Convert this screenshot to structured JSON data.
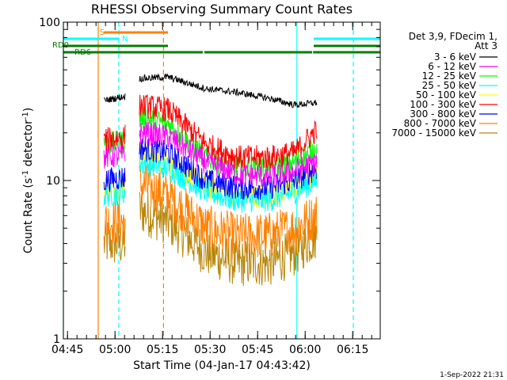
{
  "chart_data": {
    "type": "line",
    "title": "RHESSI Observing Summary Count Rates",
    "xlabel": "Start Time (04-Jan-17 04:43:42)",
    "ylabel_main": "Count Rate (s",
    "ylabel_sup": "-1",
    "ylabel_tail": " detector",
    "ylabel_end": ")",
    "yscale": "log",
    "ylim": [
      1,
      100
    ],
    "y_ticks": [
      {
        "value": 1,
        "label": "1"
      },
      {
        "value": 10,
        "label": "10"
      },
      {
        "value": 100,
        "label": "100"
      }
    ],
    "x_unit": "minutes after 04:43:42",
    "xlim": [
      0,
      100
    ],
    "x_ticks": [
      {
        "value": 1.3,
        "label": "04:45"
      },
      {
        "value": 16.3,
        "label": "05:00"
      },
      {
        "value": 31.3,
        "label": "05:15"
      },
      {
        "value": 46.3,
        "label": "05:30"
      },
      {
        "value": 61.3,
        "label": "05:45"
      },
      {
        "value": 76.3,
        "label": "06:00"
      },
      {
        "value": 91.3,
        "label": "06:15"
      }
    ],
    "legend_header": [
      "Det 3,9, FDecim 1,",
      "Att 3"
    ],
    "legend_position": "right",
    "series": [
      {
        "name": "3 - 6 keV",
        "color": "#000000",
        "levels": [
          32,
          34,
          44,
          45,
          38,
          36,
          33,
          30,
          31
        ]
      },
      {
        "name": "6 - 12 keV",
        "color": "#ff00ff",
        "levels": [
          14,
          14.5,
          20,
          19,
          13,
          11,
          10.5,
          11.5,
          13
        ]
      },
      {
        "name": "12 - 25 keV",
        "color": "#00ff00",
        "levels": [
          17,
          17.5,
          25,
          23,
          14,
          12,
          12,
          13,
          16
        ]
      },
      {
        "name": "25 - 50 keV",
        "color": "#00ffff",
        "levels": [
          8,
          8.5,
          13,
          12,
          8.5,
          7.5,
          7.5,
          8.5,
          10
        ]
      },
      {
        "name": "50 - 100 keV",
        "color": "#ffff00",
        "levels": [
          9,
          9,
          15,
          13,
          9,
          8,
          8,
          9,
          11
        ]
      },
      {
        "name": "100 - 300 keV",
        "color": "#ff0000",
        "levels": [
          18,
          19,
          30,
          28,
          17,
          14,
          14,
          15,
          21
        ]
      },
      {
        "name": "300 - 800 keV",
        "color": "#0000ff",
        "levels": [
          10,
          10.5,
          16,
          15,
          10,
          9,
          9,
          10,
          12
        ]
      },
      {
        "name": "800 - 7000 keV",
        "color": "#ff8000",
        "levels": [
          5.5,
          5.5,
          9.5,
          8,
          5,
          4.4,
          4.5,
          5,
          6
        ]
      },
      {
        "name": "7000 - 15000 keV",
        "color": "#b8860b",
        "levels": [
          4,
          4,
          6.5,
          5.5,
          3.5,
          3,
          3,
          3.5,
          4.5
        ]
      }
    ],
    "data_segments": [
      {
        "start": 12.8,
        "end": 19.5,
        "stats": "pre"
      },
      {
        "start": 24.0,
        "end": 80.0,
        "stats": "main"
      }
    ],
    "status_bars": [
      {
        "label": "S",
        "color": "#ff8000",
        "segments": [
          [
            12.8,
            33.0
          ]
        ]
      },
      {
        "label": "N",
        "color": "#00ffff",
        "segments": [
          [
            0,
            17.5
          ],
          [
            79.0,
            100
          ]
        ]
      },
      {
        "label": "RD0",
        "color": "#008000",
        "segments": [
          [
            0,
            33.0
          ],
          [
            79.0,
            100
          ]
        ]
      },
      {
        "label": "RD6",
        "color": "#008000",
        "segments": [
          [
            0,
            33.0
          ],
          [
            33.0,
            44.0
          ],
          [
            44.5,
            78.5
          ],
          [
            78.8,
            100
          ]
        ]
      }
    ],
    "vertical_lines": [
      {
        "x": 0,
        "color": "#00ffff",
        "style": "solid"
      },
      {
        "x": 11.0,
        "color": "#ff8000",
        "style": "solid"
      },
      {
        "x": 17.5,
        "color": "#00ffff",
        "style": "dashed"
      },
      {
        "x": 31.6,
        "color": "#ff8000",
        "style": "dashed"
      },
      {
        "x": 73.7,
        "color": "#00ffff",
        "style": "solid"
      },
      {
        "x": 91.5,
        "color": "#00ffff",
        "style": "dashed"
      }
    ],
    "timestamp": "1-Sep-2022 21:31"
  }
}
